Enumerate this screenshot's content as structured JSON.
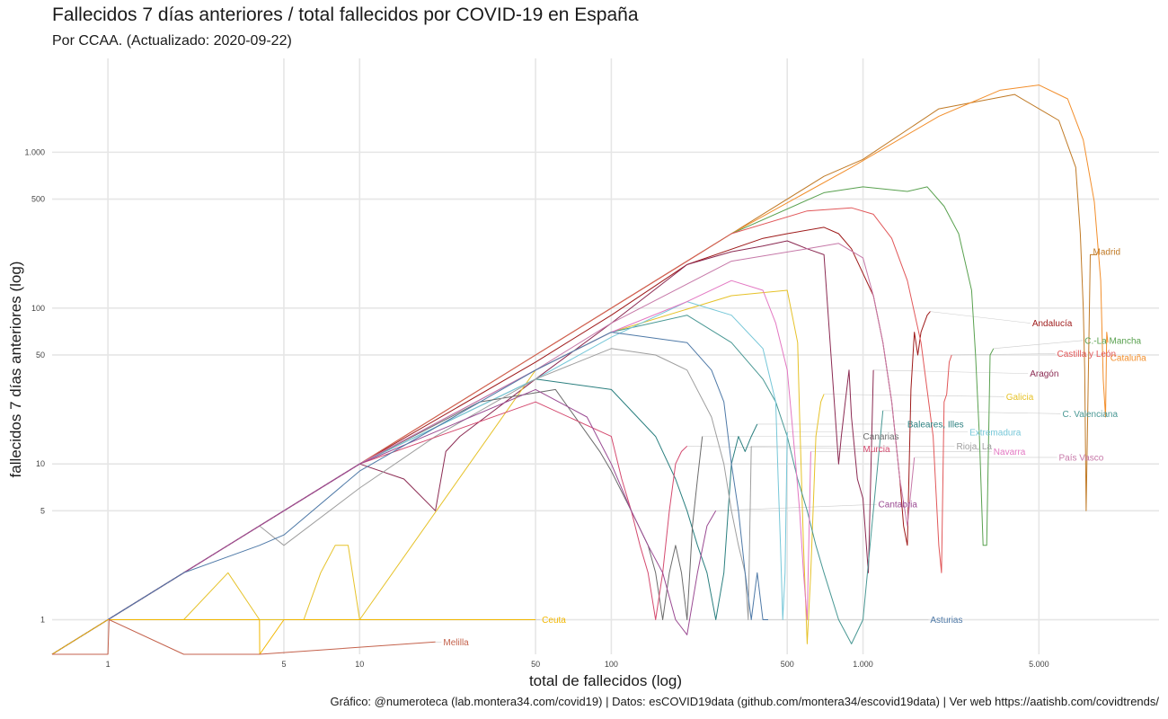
{
  "chart_data": {
    "type": "line",
    "title": "Fallecidos 7 días anteriores / total fallecidos por COVID-19 en España",
    "subtitle": "Por CCAA. (Actualizado: 2020-09-22)",
    "caption": "Gráfico: @numeroteca (lab.montera34.com/covid19) | Datos: esCOVID19data (github.com/montera34/escovid19data) | Ver web https://aatishb.com/covidtrends/",
    "xlabel": "total de fallecidos (log)",
    "ylabel": "fallecidos 7 días anteriores (log)",
    "x_scale": "log",
    "y_scale": "log",
    "xlim": [
      0.6,
      15000
    ],
    "ylim": [
      0.6,
      4000
    ],
    "x_ticks": [
      {
        "value": 1,
        "label": "1"
      },
      {
        "value": 5,
        "label": "5"
      },
      {
        "value": 10,
        "label": "10"
      },
      {
        "value": 50,
        "label": "50"
      },
      {
        "value": 100,
        "label": "100"
      },
      {
        "value": 500,
        "label": "500"
      },
      {
        "value": 1000,
        "label": "1.000"
      },
      {
        "value": 5000,
        "label": "5.000"
      }
    ],
    "y_ticks": [
      {
        "value": 1,
        "label": "1"
      },
      {
        "value": 5,
        "label": "5"
      },
      {
        "value": 10,
        "label": "10"
      },
      {
        "value": 50,
        "label": "50"
      },
      {
        "value": 100,
        "label": "100"
      },
      {
        "value": 500,
        "label": "500"
      },
      {
        "value": 1000,
        "label": "1.000"
      }
    ],
    "grid": true,
    "legend": "direct labels at line ends",
    "series": [
      {
        "name": "Madrid",
        "color": "#c07a26",
        "x": [
          0.6,
          1,
          2,
          5,
          10,
          50,
          100,
          300,
          700,
          1000,
          2000,
          4000,
          6000,
          7000,
          7300,
          7500,
          7600,
          7700,
          8000,
          8500
        ],
        "y": [
          0.6,
          1,
          2,
          5,
          10,
          50,
          100,
          300,
          700,
          900,
          1900,
          2350,
          1600,
          800,
          300,
          100,
          40,
          5,
          220,
          220
        ],
        "label": {
          "x": 8200,
          "y": 230
        }
      },
      {
        "name": "Cataluña",
        "color": "#f28e2b",
        "x": [
          0.6,
          1,
          2,
          5,
          10,
          50,
          100,
          300,
          900,
          2000,
          3500,
          5000,
          6500,
          7500,
          8300,
          8800,
          9000,
          9200,
          9300,
          9400
        ],
        "y": [
          0.6,
          1,
          2,
          5,
          10,
          50,
          100,
          300,
          800,
          1700,
          2500,
          2700,
          2200,
          1200,
          480,
          150,
          35,
          20,
          70,
          60
        ],
        "label": {
          "x": 9600,
          "y": 48
        }
      },
      {
        "name": "Andalucía",
        "color": "#9e1a1a",
        "x": [
          0.6,
          1,
          2,
          5,
          10,
          50,
          100,
          200,
          400,
          500,
          700,
          800,
          900,
          1100,
          1200,
          1300,
          1400,
          1450,
          1500,
          1550,
          1600,
          1650,
          1700,
          1800,
          1850
        ],
        "y": [
          0.6,
          1,
          2,
          5,
          10,
          45,
          90,
          190,
          280,
          300,
          330,
          300,
          240,
          120,
          60,
          25,
          8,
          4,
          3,
          30,
          70,
          50,
          70,
          90,
          95
        ],
        "label": {
          "x": 4700,
          "y": 80
        }
      },
      {
        "name": "C.-La Mancha",
        "color": "#59a14f",
        "x": [
          0.6,
          1,
          2,
          5,
          10,
          50,
          100,
          300,
          700,
          1000,
          1500,
          1800,
          2100,
          2400,
          2700,
          2800,
          2900,
          3000,
          3100,
          3200,
          3300
        ],
        "y": [
          0.6,
          1,
          2,
          5,
          10,
          50,
          100,
          300,
          550,
          600,
          560,
          600,
          450,
          300,
          130,
          50,
          15,
          3,
          3,
          50,
          55
        ],
        "label": {
          "x": 7600,
          "y": 62
        }
      },
      {
        "name": "Castilla y León",
        "color": "#e15759",
        "x": [
          0.6,
          1,
          2,
          5,
          10,
          50,
          100,
          300,
          600,
          900,
          1100,
          1300,
          1500,
          1700,
          1900,
          2000,
          2050,
          2100,
          2150,
          2200,
          2250
        ],
        "y": [
          0.6,
          1,
          2,
          5,
          10,
          50,
          100,
          300,
          420,
          440,
          400,
          280,
          150,
          60,
          15,
          3,
          2,
          25,
          28,
          45,
          50
        ],
        "label": {
          "x": 5900,
          "y": 51
        }
      },
      {
        "name": "Aragón",
        "color": "#8b2a52",
        "x": [
          0.6,
          1,
          2,
          5,
          10,
          15,
          20,
          22,
          25,
          50,
          100,
          200,
          300,
          400,
          500,
          600,
          700,
          800,
          820,
          850,
          880,
          900,
          950,
          1000,
          1050,
          1100
        ],
        "y": [
          0.6,
          1,
          2,
          5,
          10,
          8,
          5,
          12,
          15,
          35,
          80,
          190,
          230,
          250,
          270,
          240,
          220,
          10,
          15,
          25,
          40,
          20,
          8,
          6,
          2,
          40
        ],
        "label": {
          "x": 4600,
          "y": 38
        }
      },
      {
        "name": "Galicia",
        "color": "#e6c229",
        "x": [
          0.6,
          1,
          2,
          3,
          4,
          5,
          6,
          7,
          8,
          9,
          10,
          50,
          100,
          300,
          500,
          550,
          560,
          580,
          600,
          620,
          650,
          680,
          700
        ],
        "y": [
          0.6,
          1,
          1,
          2,
          1,
          1,
          1,
          2,
          3,
          3,
          1,
          40,
          70,
          120,
          130,
          60,
          20,
          3,
          0.7,
          2,
          15,
          25,
          28
        ],
        "label": {
          "x": 3700,
          "y": 27
        }
      },
      {
        "name": "C. Valenciana",
        "color": "#499894",
        "x": [
          0.6,
          1,
          2,
          5,
          10,
          50,
          100,
          200,
          300,
          400,
          450,
          500,
          550,
          600,
          650,
          700,
          800,
          900,
          1000,
          1200
        ],
        "y": [
          0.6,
          1,
          2,
          5,
          10,
          40,
          70,
          90,
          60,
          35,
          25,
          15,
          8,
          5,
          3,
          2,
          1,
          0.7,
          1,
          22
        ],
        "label": {
          "x": 6200,
          "y": 21
        }
      },
      {
        "name": "Baleares, Illes",
        "color": "#2a7f7f",
        "x": [
          0.6,
          1,
          2,
          5,
          10,
          50,
          100,
          150,
          180,
          200,
          220,
          240,
          260,
          280,
          300,
          320,
          340,
          360,
          380
        ],
        "y": [
          0.6,
          1,
          2,
          5,
          10,
          35,
          30,
          15,
          8,
          5,
          3,
          2,
          1,
          2,
          10,
          15,
          12,
          15,
          18
        ],
        "label": {
          "x": 1500,
          "y": 18
        }
      },
      {
        "name": "Extremadura",
        "color": "#76c7d8",
        "x": [
          0.6,
          1,
          2,
          5,
          10,
          50,
          100,
          200,
          300,
          400,
          450,
          460,
          470,
          480,
          490,
          500
        ],
        "y": [
          0.6,
          1,
          2,
          5,
          10,
          35,
          65,
          110,
          90,
          55,
          25,
          8,
          3,
          1,
          2,
          16
        ],
        "label": {
          "x": 2650,
          "y": 16
        }
      },
      {
        "name": "Canarias",
        "color": "#6b6b6b",
        "x": [
          0.6,
          1,
          2,
          5,
          10,
          30,
          60,
          90,
          100,
          120,
          140,
          150,
          160,
          170,
          180,
          190,
          200,
          210,
          220,
          230
        ],
        "y": [
          0.6,
          1,
          2,
          5,
          10,
          25,
          30,
          12,
          9,
          5,
          3,
          2,
          1,
          2,
          3,
          2,
          1,
          4,
          8,
          15
        ],
        "label": {
          "x": 1000,
          "y": 15
        }
      },
      {
        "name": "Rioja, La",
        "color": "#9e9e9e",
        "x": [
          0.6,
          1,
          2,
          4,
          5,
          10,
          20,
          50,
          100,
          150,
          200,
          250,
          280,
          300,
          320,
          340,
          350,
          360
        ],
        "y": [
          0.6,
          1,
          2,
          4,
          3,
          7,
          15,
          35,
          55,
          50,
          40,
          20,
          10,
          5,
          3,
          2,
          1,
          13
        ],
        "label": {
          "x": 2350,
          "y": 13
        }
      },
      {
        "name": "Navarra",
        "color": "#e377c2",
        "x": [
          0.6,
          1,
          2,
          5,
          10,
          50,
          100,
          200,
          300,
          400,
          450,
          500,
          520,
          540,
          560,
          580,
          600,
          620
        ],
        "y": [
          0.6,
          1,
          2,
          5,
          10,
          40,
          70,
          110,
          150,
          130,
          80,
          40,
          20,
          10,
          5,
          2,
          1,
          12
        ],
        "label": {
          "x": 3300,
          "y": 12
        }
      },
      {
        "name": "Murcia",
        "color": "#d44a6f",
        "x": [
          0.6,
          1,
          2,
          5,
          10,
          50,
          100,
          110,
          120,
          130,
          140,
          150,
          160,
          170,
          180,
          190,
          200
        ],
        "y": [
          0.6,
          1,
          2,
          5,
          10,
          25,
          15,
          8,
          5,
          3,
          2,
          1,
          2,
          5,
          10,
          12,
          13
        ],
        "label": {
          "x": 1000,
          "y": 12.5
        }
      },
      {
        "name": "País Vasco",
        "color": "#c678a8",
        "x": [
          0.6,
          1,
          2,
          5,
          10,
          50,
          100,
          300,
          600,
          800,
          1000,
          1100,
          1200,
          1300,
          1400,
          1500,
          1600
        ],
        "y": [
          0.6,
          1,
          2,
          5,
          10,
          40,
          80,
          200,
          240,
          260,
          210,
          120,
          60,
          25,
          8,
          4,
          11
        ],
        "label": {
          "x": 6000,
          "y": 11
        }
      },
      {
        "name": "Cantabria",
        "color": "#9a4a92",
        "x": [
          0.6,
          1,
          2,
          5,
          10,
          50,
          80,
          100,
          120,
          140,
          160,
          180,
          200,
          220,
          240,
          260
        ],
        "y": [
          0.6,
          1,
          2,
          5,
          10,
          30,
          20,
          10,
          5,
          3,
          2,
          1,
          0.8,
          2,
          4,
          5
        ],
        "label": {
          "x": 1150,
          "y": 5.5
        }
      },
      {
        "name": "Asturias",
        "color": "#4e79a7",
        "x": [
          0.6,
          1,
          2,
          4,
          5,
          10,
          50,
          100,
          200,
          250,
          280,
          300,
          320,
          340,
          360,
          380,
          400,
          420
        ],
        "y": [
          0.6,
          1,
          2,
          3,
          3.5,
          9,
          40,
          70,
          60,
          40,
          25,
          10,
          5,
          2,
          1,
          2,
          1,
          1
        ],
        "label": {
          "x": 1850,
          "y": 1
        }
      },
      {
        "name": "Ceuta",
        "color": "#f2b701",
        "x": [
          0.6,
          1,
          2,
          3,
          4,
          4.01,
          5,
          6,
          7,
          8,
          9,
          10,
          50
        ],
        "y": [
          0.6,
          1,
          1,
          1,
          1,
          0.6,
          1,
          1,
          1,
          1,
          1,
          1,
          1
        ],
        "label": {
          "x": 53,
          "y": 1
        }
      },
      {
        "name": "Melilla",
        "color": "#c4624c",
        "x": [
          0.6,
          1,
          1.01,
          2,
          3,
          4,
          20
        ],
        "y": [
          0.6,
          0.6,
          1,
          0.6,
          0.6,
          0.6,
          0.72
        ],
        "label": {
          "x": 21.5,
          "y": 0.72
        }
      }
    ]
  }
}
